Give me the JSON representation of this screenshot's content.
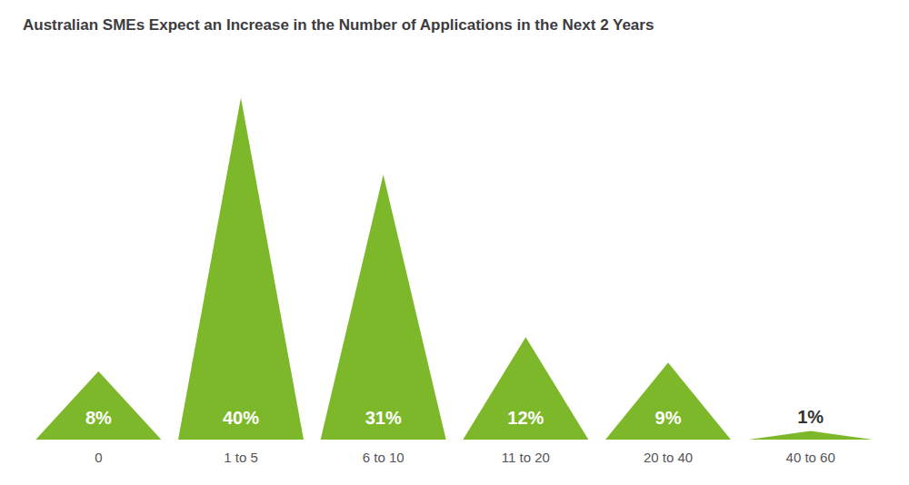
{
  "chart_data": {
    "type": "bar",
    "title": "Australian SMEs Expect an Increase in the Number of Applications in the Next 2 Years",
    "categories": [
      "0",
      "1 to 5",
      "6 to 10",
      "11 to 20",
      "20 to 40",
      "40 to 60"
    ],
    "values": [
      8,
      40,
      31,
      12,
      9,
      1
    ],
    "value_labels": [
      "8%",
      "40%",
      "31%",
      "12%",
      "9%",
      "1%"
    ],
    "color": "#7db82a",
    "ylim": [
      0,
      44
    ],
    "data_labels": true,
    "tick_labels": "x",
    "grid": false
  }
}
